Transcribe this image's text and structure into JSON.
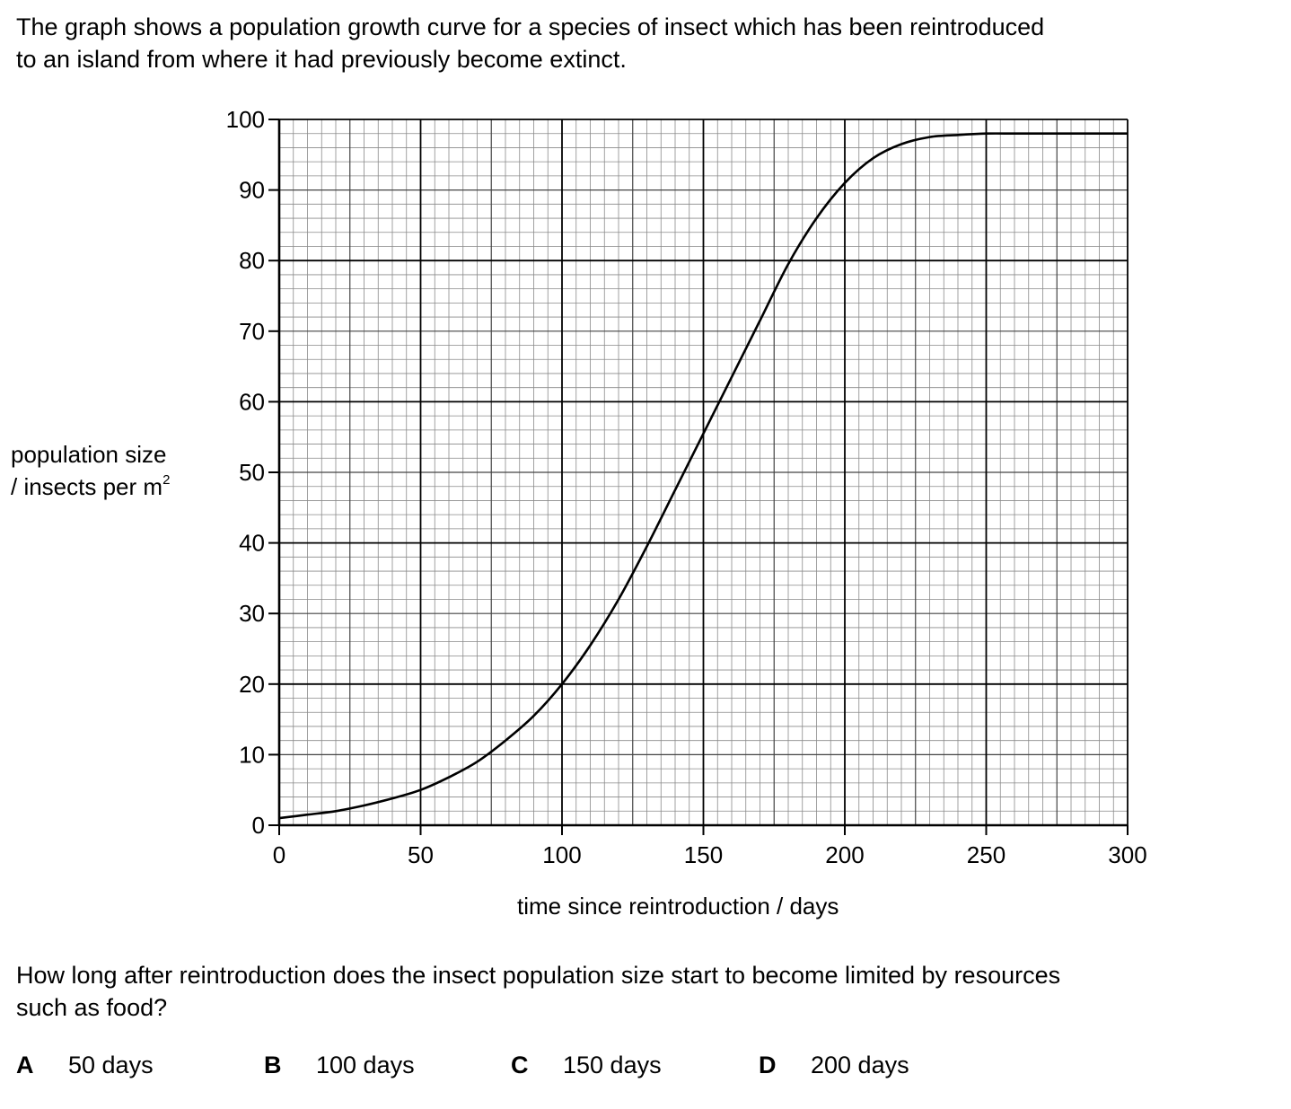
{
  "intro": {
    "line1": "The graph shows a population growth curve for a species of insect which has been reintroduced",
    "line2": "to an island from where it had previously become extinct."
  },
  "chart_data": {
    "type": "line",
    "xlabel": "time since reintroduction / days",
    "ylabel_line1": "population size",
    "ylabel_line2_prefix": "/ insects per m",
    "ylabel_superscript": "2",
    "xlim": [
      0,
      300
    ],
    "ylim": [
      0,
      100
    ],
    "x_ticks": [
      "0",
      "50",
      "100",
      "150",
      "200",
      "250",
      "300"
    ],
    "y_ticks": [
      "0",
      "10",
      "20",
      "30",
      "40",
      "50",
      "60",
      "70",
      "80",
      "90",
      "100"
    ],
    "grid": true,
    "series": [
      {
        "x": [
          0,
          10,
          20,
          30,
          40,
          50,
          60,
          70,
          80,
          90,
          100,
          110,
          120,
          130,
          140,
          150,
          160,
          170,
          180,
          190,
          200,
          210,
          220,
          230,
          240,
          250,
          260,
          270,
          280,
          290,
          300
        ],
        "y": [
          1,
          1.5,
          2,
          2.8,
          3.8,
          5,
          6.8,
          9,
          12,
          15.5,
          20,
          25.5,
          32,
          39.5,
          47.5,
          55.5,
          63.5,
          71.5,
          79.5,
          86,
          91,
          94.5,
          96.5,
          97.5,
          97.8,
          98,
          98,
          98,
          98,
          98,
          98
        ]
      }
    ]
  },
  "question": {
    "line1": "How long after reintroduction does the insect population size start to become limited by resources",
    "line2": "such as food?"
  },
  "options": [
    {
      "letter": "A",
      "text": "50 days"
    },
    {
      "letter": "B",
      "text": "100 days"
    },
    {
      "letter": "C",
      "text": "150 days"
    },
    {
      "letter": "D",
      "text": "200 days"
    }
  ]
}
